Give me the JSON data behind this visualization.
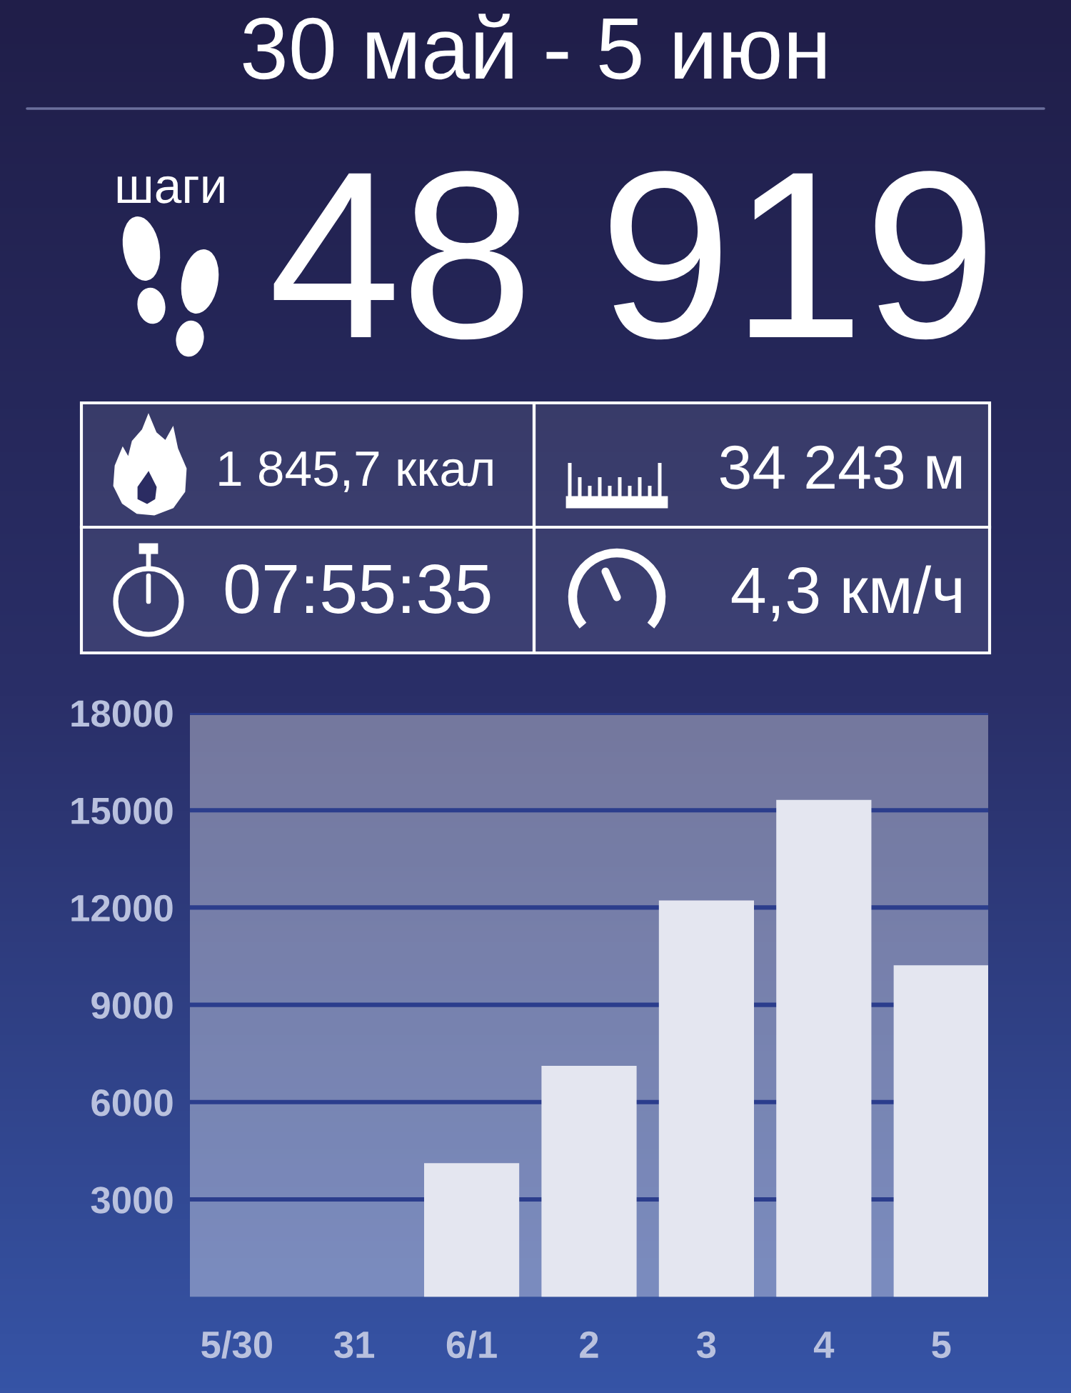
{
  "chart_data": [
    {
      "type": "other",
      "title": "30 май - 5 июн",
      "annotations": [
        "шаги",
        "48 919",
        "1 845,7 ккал",
        "34 243 м",
        "07:55:35",
        "4,3 км/ч"
      ]
    },
    {
      "type": "bar",
      "categories": [
        "5/30",
        "31",
        "6/1",
        "2",
        "3",
        "4",
        "5"
      ],
      "values": [
        0,
        0,
        4100,
        7100,
        12200,
        15300,
        10200
      ],
      "color": "#e4e6f0",
      "ylim": [
        0,
        18000
      ],
      "yticks": [
        3000,
        6000,
        9000,
        12000,
        15000,
        18000
      ],
      "grid": "y"
    }
  ]
}
